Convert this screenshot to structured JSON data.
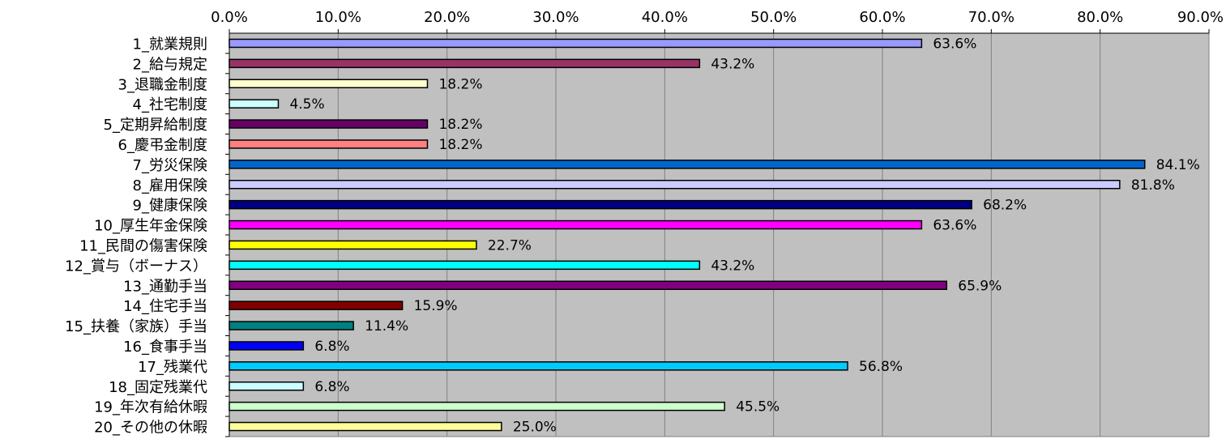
{
  "chart_data": {
    "type": "bar",
    "orientation": "horizontal",
    "title": "",
    "xlabel": "",
    "ylabel": "",
    "xlim": [
      0,
      90
    ],
    "x_ticks": [
      "0.0%",
      "10.0%",
      "20.0%",
      "30.0%",
      "40.0%",
      "50.0%",
      "60.0%",
      "70.0%",
      "80.0%",
      "90.0%"
    ],
    "x_axis_position": "top",
    "grid": true,
    "legend": "none",
    "plot_background": "#C0C0C0",
    "categories": [
      "1_就業規則",
      "2_給与規定",
      "3_退職金制度",
      "4_社宅制度",
      "5_定期昇給制度",
      "6_慶弔金制度",
      "7_労災保険",
      "8_雇用保険",
      "9_健康保険",
      "10_厚生年金保険",
      "11_民間の傷害保険",
      "12_賞与（ボーナス）",
      "13_通勤手当",
      "14_住宅手当",
      "15_扶養（家族）手当",
      "16_食事手当",
      "17_残業代",
      "18_固定残業代",
      "19_年次有給休暇",
      "20_その他の休暇"
    ],
    "values": [
      63.6,
      43.2,
      18.2,
      4.5,
      18.2,
      18.2,
      84.1,
      81.8,
      68.2,
      63.6,
      22.7,
      43.2,
      65.9,
      15.9,
      11.4,
      6.8,
      56.8,
      6.8,
      45.5,
      25.0
    ],
    "value_labels": [
      "63.6%",
      "43.2%",
      "18.2%",
      "4.5%",
      "18.2%",
      "18.2%",
      "84.1%",
      "81.8%",
      "68.2%",
      "63.6%",
      "22.7%",
      "43.2%",
      "65.9%",
      "15.9%",
      "11.4%",
      "6.8%",
      "56.8%",
      "6.8%",
      "45.5%",
      "25.0%"
    ],
    "colors": [
      "#9999FF",
      "#993366",
      "#FFFFCC",
      "#CCFFFF",
      "#660066",
      "#FF8080",
      "#0066CC",
      "#CCCCFF",
      "#000080",
      "#FF00FF",
      "#FFFF00",
      "#00FFFF",
      "#800080",
      "#800000",
      "#008080",
      "#0000FF",
      "#00CCFF",
      "#CCFFFF",
      "#CCFFCC",
      "#FFFF99"
    ]
  }
}
